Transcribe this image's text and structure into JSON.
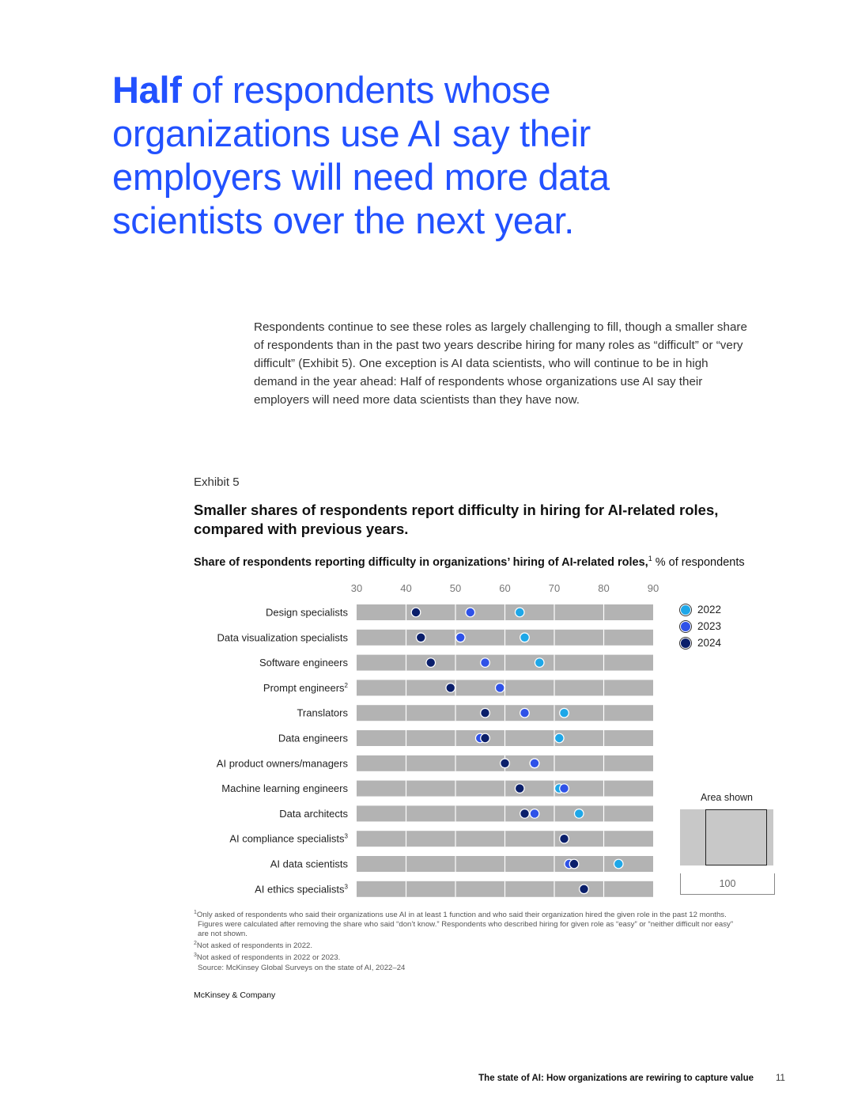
{
  "headline": {
    "bold": "Half",
    "rest": " of respondents whose organizations use AI say their employers will need more data scientists over the next year."
  },
  "body": "Respondents continue to see these roles as largely challenging to fill, though a smaller share of respondents than in the past two years describe hiring for many roles as “difficult” or “very difficult” (Exhibit 5). One exception is AI data scientists, who will continue to be in high demand in the year ahead: Half of respondents whose organizations use AI say their employers will need more data scientists than they have now.",
  "exhibit": {
    "label": "Exhibit 5",
    "title": "Smaller shares of respondents report difficulty in hiring for AI-related roles, compared with previous years.",
    "subtitle_bold": "Share of respondents reporting difficulty in organizations’ hiring of AI-related roles,",
    "subtitle_sup": "1",
    "subtitle_rest": " % of respondents"
  },
  "colors": {
    "y2022": "#1ea7e8",
    "y2023": "#2f52e8",
    "y2024": "#0b1f6b",
    "track": "#b3b3b3",
    "headline": "#2251ff"
  },
  "chart_data": {
    "type": "scatter",
    "title": "Share of respondents reporting difficulty in organizations’ hiring of AI-related roles",
    "xlabel": "% of respondents",
    "xlim": [
      30,
      90
    ],
    "ticks": [
      30,
      40,
      50,
      60,
      70,
      80,
      90
    ],
    "categories": [
      {
        "label": "Design specialists",
        "sup": ""
      },
      {
        "label": "Data visualization specialists",
        "sup": ""
      },
      {
        "label": "Software engineers",
        "sup": ""
      },
      {
        "label": "Prompt engineers",
        "sup": "2"
      },
      {
        "label": "Translators",
        "sup": ""
      },
      {
        "label": "Data engineers",
        "sup": ""
      },
      {
        "label": "AI product owners/managers",
        "sup": ""
      },
      {
        "label": "Machine learning engineers",
        "sup": ""
      },
      {
        "label": "Data architects",
        "sup": ""
      },
      {
        "label": "AI compliance specialists",
        "sup": "3"
      },
      {
        "label": "AI data scientists",
        "sup": ""
      },
      {
        "label": "AI ethics specialists",
        "sup": "3"
      }
    ],
    "series": [
      {
        "name": "2022",
        "values": [
          63,
          64,
          67,
          null,
          72,
          71,
          66,
          71,
          75,
          null,
          83,
          null
        ]
      },
      {
        "name": "2023",
        "values": [
          53,
          51,
          56,
          59,
          64,
          55,
          66,
          72,
          66,
          null,
          73,
          null
        ]
      },
      {
        "name": "2024",
        "values": [
          42,
          43,
          45,
          49,
          56,
          56,
          60,
          63,
          64,
          72,
          74,
          76
        ]
      }
    ],
    "legend": [
      "2022",
      "2023",
      "2024"
    ],
    "legend_position": "top-right"
  },
  "area_shown": {
    "label": "Area shown",
    "scale": "100"
  },
  "footnotes": {
    "fn1_sup": "1",
    "fn1_line1": "Only asked of respondents who said their organizations use AI in at least 1 function and who said their organization hired the given role in the past 12 months.",
    "fn1_line2": "Figures were calculated after removing the share who said “don’t know.” Respondents who described hiring for given role as “easy” or “neither difficult nor easy”",
    "fn1_line3": "are not shown.",
    "fn2_sup": "2",
    "fn2": "Not asked of respondents in 2022.",
    "fn3_sup": "3",
    "fn3": "Not asked of respondents in 2022 or 2023.",
    "source": "Source: McKinsey Global Surveys on the state of AI, 2022–24"
  },
  "brand": "McKinsey & Company",
  "running_title": "The state of AI: How organizations are rewiring to capture value",
  "page_number": "11"
}
